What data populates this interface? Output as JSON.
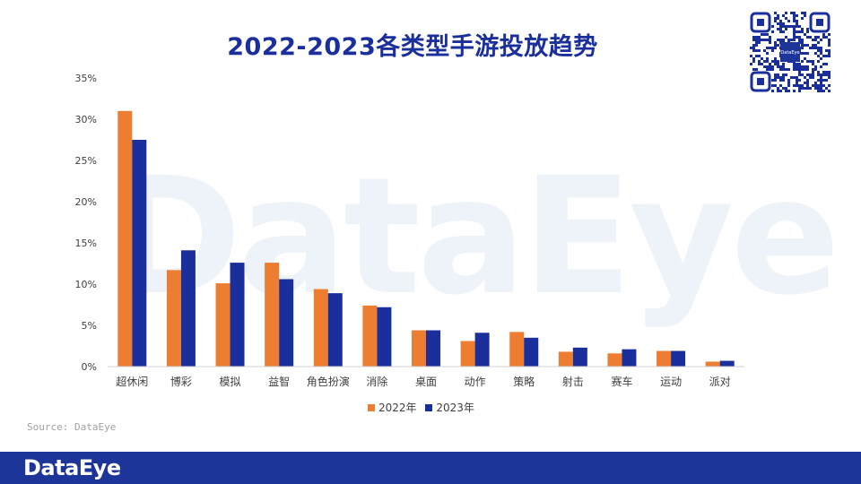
{
  "header": {
    "title": "2022-2023各类型手游投放趋势"
  },
  "brand": {
    "watermark": "DataEye",
    "footer_logo": "DataEye",
    "qr_label": "DataEye"
  },
  "source": "Source: DataEye",
  "colors": {
    "series_2022": "#ed7d31",
    "series_2023": "#1a2f9c",
    "footer_bg": "#1d3499",
    "title": "#1a2f9c"
  },
  "chart_data": {
    "type": "bar",
    "title": "2022-2023各类型手游投放趋势",
    "xlabel": "",
    "ylabel": "",
    "ylim": [
      0,
      35
    ],
    "yticks": [
      "0%",
      "5%",
      "10%",
      "15%",
      "20%",
      "25%",
      "30%",
      "35%"
    ],
    "categories": [
      "超休闲",
      "博彩",
      "模拟",
      "益智",
      "角色扮演",
      "消除",
      "桌面",
      "动作",
      "策略",
      "射击",
      "赛车",
      "运动",
      "派对"
    ],
    "series": [
      {
        "name": "2022年",
        "values": [
          31.0,
          11.7,
          10.1,
          12.6,
          9.4,
          7.4,
          4.4,
          3.1,
          4.2,
          1.8,
          1.6,
          1.9,
          0.6
        ]
      },
      {
        "name": "2023年",
        "values": [
          27.5,
          14.1,
          12.6,
          10.6,
          8.9,
          7.2,
          4.4,
          4.1,
          3.5,
          2.3,
          2.1,
          1.9,
          0.7
        ]
      }
    ],
    "grid": false,
    "legend_position": "bottom"
  }
}
